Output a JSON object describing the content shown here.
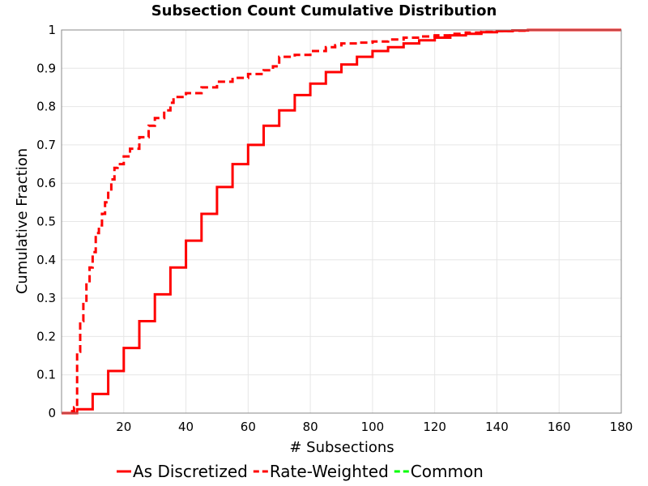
{
  "chart_data": {
    "type": "line",
    "title": "Subsection Count Cumulative Distribution",
    "xlabel": "# Subsections",
    "ylabel": "Cumulative Fraction",
    "xlim": [
      0,
      180
    ],
    "ylim": [
      0,
      1
    ],
    "x_ticks": [
      "20",
      "40",
      "60",
      "80",
      "100",
      "120",
      "140",
      "160",
      "180"
    ],
    "y_ticks": [
      "0",
      "0.1",
      "0.2",
      "0.3",
      "0.4",
      "0.5",
      "0.6",
      "0.7",
      "0.8",
      "0.9",
      "1"
    ],
    "grid": true,
    "legend_position": "bottom",
    "series": [
      {
        "name": "As Discretized",
        "color": "#ff0000",
        "style": "solid",
        "x": [
          0,
          5,
          10,
          15,
          20,
          25,
          30,
          35,
          40,
          45,
          50,
          55,
          60,
          65,
          70,
          75,
          80,
          85,
          90,
          95,
          100,
          105,
          110,
          115,
          120,
          125,
          130,
          135,
          140,
          145,
          150,
          160,
          170,
          180
        ],
        "y": [
          0,
          0.01,
          0.05,
          0.11,
          0.17,
          0.24,
          0.31,
          0.38,
          0.45,
          0.52,
          0.59,
          0.65,
          0.7,
          0.75,
          0.79,
          0.83,
          0.86,
          0.89,
          0.91,
          0.93,
          0.945,
          0.955,
          0.965,
          0.973,
          0.98,
          0.986,
          0.99,
          0.994,
          0.997,
          0.999,
          1.0,
          1.0,
          1.0,
          1.0
        ]
      },
      {
        "name": "Rate-Weighted",
        "color": "#ff0000",
        "style": "dashed",
        "x": [
          0,
          3,
          4,
          5,
          6,
          7,
          8,
          9,
          10,
          11,
          12,
          13,
          14,
          15,
          16,
          17,
          18,
          20,
          22,
          25,
          28,
          30,
          33,
          35,
          36,
          40,
          45,
          50,
          55,
          60,
          65,
          68,
          70,
          75,
          80,
          85,
          88,
          90,
          95,
          100,
          105,
          110,
          115,
          120,
          125,
          130,
          135,
          140,
          145,
          150,
          160,
          180
        ],
        "y": [
          0,
          0.005,
          0.015,
          0.16,
          0.24,
          0.29,
          0.34,
          0.38,
          0.42,
          0.47,
          0.49,
          0.52,
          0.55,
          0.58,
          0.61,
          0.64,
          0.65,
          0.67,
          0.69,
          0.72,
          0.75,
          0.77,
          0.79,
          0.81,
          0.825,
          0.835,
          0.85,
          0.865,
          0.875,
          0.885,
          0.895,
          0.905,
          0.93,
          0.935,
          0.945,
          0.955,
          0.96,
          0.965,
          0.967,
          0.97,
          0.975,
          0.98,
          0.983,
          0.986,
          0.99,
          0.993,
          0.995,
          0.997,
          0.998,
          1.0,
          1.0,
          1.0
        ]
      },
      {
        "name": "Common",
        "color": "#00ff00",
        "style": "dashed",
        "x": [],
        "y": []
      }
    ]
  }
}
